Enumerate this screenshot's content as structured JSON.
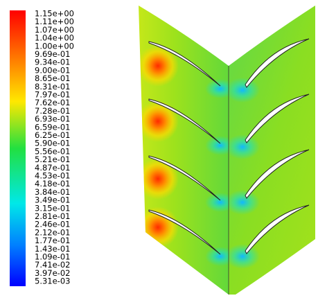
{
  "legend": {
    "labels": [
      "1.15e+00",
      "1.11e+00",
      "1.07e+00",
      "1.04e+00",
      "1.00e+00",
      "9.69e-01",
      "9.34e-01",
      "9.00e-01",
      "8.65e-01",
      "8.31e-01",
      "7.97e-01",
      "7.62e-01",
      "7.28e-01",
      "6.93e-01",
      "6.59e-01",
      "6.25e-01",
      "5.90e-01",
      "5.56e-01",
      "5.21e-01",
      "4.87e-01",
      "4.53e-01",
      "4.18e-01",
      "3.84e-01",
      "3.49e-01",
      "3.15e-01",
      "2.81e-01",
      "2.46e-01",
      "2.12e-01",
      "1.77e-01",
      "1.43e-01",
      "1.09e-01",
      "7.41e-02",
      "3.97e-02",
      "5.31e-03"
    ]
  }
}
